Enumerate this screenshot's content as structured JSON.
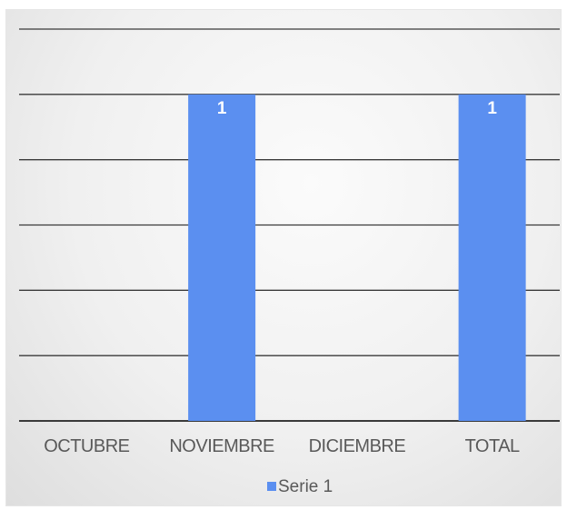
{
  "chart_data": {
    "type": "bar",
    "categories": [
      "OCTUBRE",
      "NOVIEMBRE",
      "DICIEMBRE",
      "TOTAL"
    ],
    "series": [
      {
        "name": "Serie 1",
        "values": [
          0,
          1,
          0,
          1
        ],
        "color": "#5b8ff0"
      }
    ],
    "data_labels": [
      "",
      "1",
      "",
      "1"
    ],
    "ylim": [
      0,
      1.2
    ],
    "y_gridlines": [
      0,
      0.2,
      0.4,
      0.6,
      0.8,
      1.0,
      1.2
    ],
    "y_tick_labels_shown": false,
    "grid": true,
    "legend_position": "bottom",
    "gridline_color": "#3a3a3a",
    "background": "light-gray-gradient"
  }
}
